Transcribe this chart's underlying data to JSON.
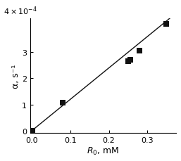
{
  "x_data": [
    0.0,
    0.08,
    0.25,
    0.255,
    0.28,
    0.35
  ],
  "y_data": [
    0.0,
    0.000108,
    0.000265,
    0.000272,
    0.000305,
    0.00041
  ],
  "line_x": [
    0.0,
    0.365
  ],
  "line_y": [
    0.0,
    0.000438
  ],
  "xlabel": "$R_0$, mM",
  "ylabel": "α, s⁻¹",
  "xlim": [
    -0.005,
    0.375
  ],
  "ylim": [
    -1e-05,
    0.00043
  ],
  "xticks": [
    0.0,
    0.1,
    0.2,
    0.3
  ],
  "yticks": [
    0.0,
    0.0001,
    0.0002,
    0.0003
  ],
  "yticklabels": [
    "0",
    "1",
    "2",
    "3"
  ],
  "top_label": "$4\\times10^{-4}$",
  "marker_color": "#111111",
  "line_color": "#111111",
  "background_color": "#ffffff",
  "marker_size": 35,
  "tick_labelsize": 8,
  "axis_labelsize": 9
}
